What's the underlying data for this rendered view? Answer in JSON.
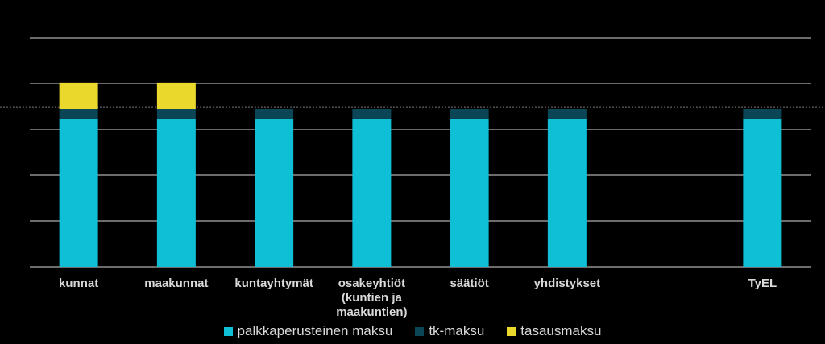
{
  "chart_data": {
    "type": "stacked_bar",
    "categories": [
      "kunnat",
      "maakunnat",
      "kuntayhtymät",
      "osakeyhtiöt (kuntien ja maakuntien)",
      "säätiöt",
      "yhdistykset",
      null,
      "TyEL"
    ],
    "series": [
      {
        "name": "palkkaperusteinen maksu",
        "color": "#0fbfd6",
        "values": [
          3.23,
          3.23,
          3.23,
          3.23,
          3.23,
          3.23,
          null,
          3.23
        ]
      },
      {
        "name": "tk-maksu",
        "color": "#0b4657",
        "values": [
          0.21,
          0.21,
          0.21,
          0.21,
          0.21,
          0.21,
          null,
          0.21
        ]
      },
      {
        "name": "tasausmaksu",
        "color": "#ead82c",
        "values": [
          0.58,
          0.58,
          null,
          null,
          null,
          null,
          null,
          null
        ]
      }
    ],
    "ylim": [
      0,
      5
    ],
    "yticks": [
      0,
      1,
      2,
      3,
      4,
      5
    ],
    "grid": true,
    "reference_line": 3.49,
    "legend": "bottom"
  }
}
